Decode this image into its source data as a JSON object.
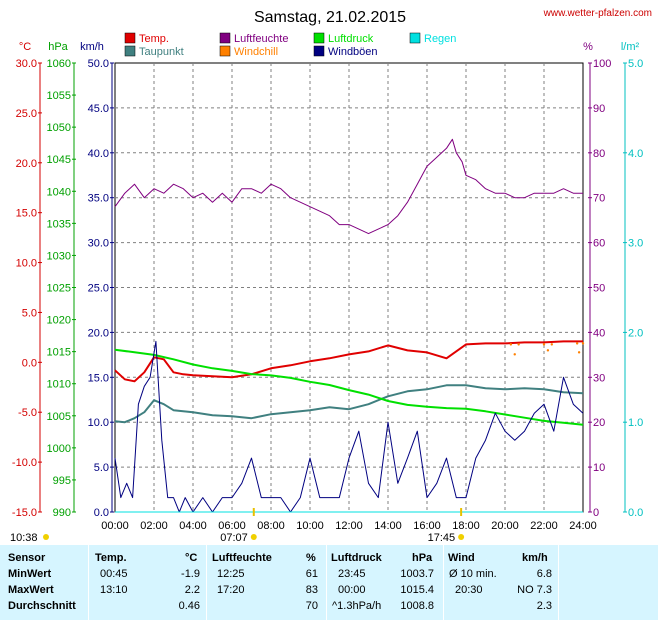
{
  "header": {
    "title": "Samstag, 21.02.2015",
    "source": "www.wetter-pfalzen.com"
  },
  "chart_data": {
    "type": "line",
    "title": "Samstag, 21.02.2015",
    "x_ticks": [
      "00:00",
      "02:00",
      "04:00",
      "06:00",
      "08:00",
      "10:00",
      "12:00",
      "14:00",
      "16:00",
      "18:00",
      "20:00",
      "22:00",
      "24:00"
    ],
    "x_range": [
      0,
      24
    ],
    "grid": true,
    "legend_position": "top",
    "axes": {
      "temp": {
        "unit": "°C",
        "ticks": [
          "30.0",
          "25.0",
          "20.0",
          "15.0",
          "10.0",
          "5.0",
          "0.0",
          "-5.0",
          "-10.0",
          "-15.0"
        ],
        "range": [
          -15,
          30
        ],
        "color": "#d40000"
      },
      "press": {
        "unit": "hPa",
        "ticks": [
          "1060",
          "1055",
          "1050",
          "1045",
          "1040",
          "1035",
          "1030",
          "1025",
          "1020",
          "1015",
          "1010",
          "1005",
          "1000",
          "995",
          "990"
        ],
        "range": [
          990,
          1060
        ],
        "color": "#00a000"
      },
      "wind": {
        "unit": "km/h",
        "ticks": [
          "50.0",
          "45.0",
          "40.0",
          "35.0",
          "30.0",
          "25.0",
          "20.0",
          "15.0",
          "10.0",
          "5.0",
          "0.0"
        ],
        "range": [
          0,
          50
        ],
        "color": "#000080"
      },
      "hum": {
        "unit": "%",
        "ticks": [
          "100",
          "90",
          "80",
          "70",
          "60",
          "50",
          "40",
          "30",
          "20",
          "10",
          "0"
        ],
        "range": [
          0,
          100
        ],
        "color": "#800080"
      },
      "rain": {
        "unit": "l/m²",
        "ticks": [
          "5.0",
          "4.0",
          "3.0",
          "2.0",
          "1.0",
          "0.0"
        ],
        "range": [
          0,
          5
        ],
        "color": "#00c0c0"
      }
    },
    "legend": [
      {
        "label": "Temp.",
        "color": "#e00000"
      },
      {
        "label": "Taupunkt",
        "color": "#408080"
      },
      {
        "label": "Luftfeuchte",
        "color": "#800080"
      },
      {
        "label": "Windchill",
        "color": "#ff8000"
      },
      {
        "label": "Luftdruck",
        "color": "#00e000"
      },
      {
        "label": "Windböen",
        "color": "#000080"
      },
      {
        "label": "Regen",
        "color": "#00e0e0"
      }
    ],
    "series": [
      {
        "name": "Luftfeuchte",
        "axis": "hum",
        "color": "#800080",
        "x": [
          0,
          0.5,
          1,
          1.5,
          2,
          2.5,
          3,
          3.5,
          4,
          4.5,
          5,
          5.5,
          6,
          6.5,
          7,
          7.5,
          8,
          8.5,
          9,
          9.5,
          10,
          10.5,
          11,
          11.5,
          12,
          12.5,
          13,
          13.5,
          14,
          14.5,
          15,
          15.5,
          16,
          16.5,
          17,
          17.3,
          17.5,
          17.8,
          18,
          18.5,
          19,
          19.5,
          20,
          20.5,
          21,
          21.5,
          22,
          22.5,
          23,
          23.5,
          24
        ],
        "y": [
          68,
          71,
          73,
          70,
          72,
          71,
          73,
          72,
          70,
          71,
          69,
          71,
          69,
          72,
          72,
          71,
          73,
          72,
          70,
          69,
          68,
          67,
          66,
          64,
          64,
          63,
          62,
          63,
          64,
          66,
          69,
          73,
          77,
          79,
          81,
          83,
          80,
          78,
          75,
          74,
          72,
          71,
          71,
          70,
          70,
          71,
          71,
          71,
          72,
          71,
          71
        ]
      },
      {
        "name": "Temp.",
        "axis": "temp",
        "color": "#e00000",
        "x": [
          0,
          0.5,
          1,
          1.5,
          2,
          2.5,
          3,
          3.5,
          4,
          5,
          6,
          7,
          8,
          9,
          10,
          11,
          12,
          13,
          14,
          15,
          16,
          17,
          18,
          19,
          20,
          21,
          22,
          23,
          24
        ],
        "y": [
          -0.8,
          -1.7,
          -1.9,
          -1.0,
          0.5,
          0.3,
          -1.0,
          -1.2,
          -1.3,
          -1.4,
          -1.5,
          -1.2,
          -0.6,
          -0.3,
          0.1,
          0.4,
          0.8,
          1.1,
          1.7,
          1.2,
          1.0,
          0.4,
          1.8,
          1.9,
          1.9,
          2.0,
          2.0,
          2.1,
          2.1
        ]
      },
      {
        "name": "Taupunkt",
        "axis": "temp",
        "color": "#408080",
        "x": [
          0,
          0.5,
          1,
          1.5,
          2,
          2.5,
          3,
          4,
          5,
          6,
          7,
          8,
          9,
          10,
          11,
          12,
          13,
          14,
          15,
          16,
          17,
          18,
          19,
          20,
          21,
          22,
          23,
          24
        ],
        "y": [
          -5.9,
          -6.0,
          -5.6,
          -5.0,
          -3.8,
          -4.2,
          -4.8,
          -5.0,
          -5.3,
          -5.4,
          -5.6,
          -5.2,
          -5.0,
          -4.8,
          -4.5,
          -4.7,
          -4.2,
          -3.4,
          -2.9,
          -2.7,
          -2.3,
          -2.3,
          -2.6,
          -2.7,
          -2.6,
          -2.7,
          -3.0,
          -3.1
        ]
      },
      {
        "name": "Luftdruck",
        "axis": "press",
        "color": "#00e000",
        "x": [
          0,
          1,
          2,
          3,
          4,
          5,
          6,
          7,
          8,
          9,
          10,
          11,
          12,
          13,
          14,
          15,
          16,
          17,
          18,
          19,
          20,
          21,
          22,
          23,
          24
        ],
        "y": [
          1015.3,
          1014.9,
          1014.5,
          1013.8,
          1013.0,
          1012.4,
          1012.0,
          1011.5,
          1011.3,
          1010.9,
          1010.3,
          1009.8,
          1009.0,
          1008.3,
          1007.3,
          1006.7,
          1006.4,
          1006.2,
          1006.1,
          1005.7,
          1005.2,
          1004.7,
          1004.2,
          1003.9,
          1003.6
        ]
      },
      {
        "name": "Windböen",
        "axis": "wind",
        "color": "#000080",
        "x": [
          0,
          0.3,
          0.6,
          0.9,
          1.2,
          1.5,
          1.8,
          2.1,
          2.4,
          2.7,
          3.0,
          3.3,
          3.6,
          4.0,
          4.5,
          5.0,
          5.5,
          6.0,
          6.5,
          7.0,
          7.5,
          8.0,
          8.5,
          9.0,
          9.5,
          10.0,
          10.5,
          11.0,
          11.5,
          12.0,
          12.5,
          13.0,
          13.5,
          14.0,
          14.5,
          15.0,
          15.5,
          16.0,
          16.5,
          17.0,
          17.5,
          18.0,
          18.5,
          19.0,
          19.5,
          20.0,
          20.5,
          21.0,
          21.5,
          22.0,
          22.5,
          23.0,
          23.5,
          24.0
        ],
        "y": [
          6,
          1.6,
          3.2,
          1.6,
          12,
          14,
          15,
          19,
          8,
          1.6,
          1.6,
          0,
          1.6,
          0,
          1.6,
          0,
          1.6,
          1.6,
          3.2,
          6,
          1.6,
          1.6,
          1.6,
          0,
          1.6,
          6,
          1.6,
          1.6,
          1.6,
          6,
          9,
          3.2,
          1.6,
          10,
          3.2,
          6,
          9,
          1.6,
          3.2,
          6,
          1.6,
          1.6,
          6,
          8,
          11,
          9,
          8,
          9,
          11,
          12,
          9,
          15,
          12,
          11
        ]
      },
      {
        "name": "Windchill",
        "axis": "temp",
        "color": "#ff8000",
        "x": [
          20.3,
          20.5,
          20.7,
          22.0,
          22.2,
          22.4,
          23.7,
          23.8,
          24.0
        ],
        "y": [
          1.8,
          0.8,
          1.8,
          1.8,
          1.2,
          1.8,
          1.9,
          1.0,
          1.9
        ]
      },
      {
        "name": "Regen",
        "axis": "rain",
        "color": "#00e0e0",
        "x": [
          0,
          24
        ],
        "y": [
          0,
          0
        ]
      }
    ],
    "sun": {
      "rise_time": "07:07",
      "set_time": "17:45",
      "moon_time": "10:38"
    }
  },
  "stats": {
    "headers": {
      "sensor": "Sensor",
      "temp": "Temp.",
      "temp_unit": "°C",
      "hum": "Luftfeuchte",
      "hum_unit": "%",
      "press": "Luftdruck",
      "press_unit": "hPa",
      "wind": "Wind",
      "wind_unit": "km/h"
    },
    "rows": [
      {
        "label": "MinWert",
        "temp_time": "00:45",
        "temp_val": "-1.9",
        "hum_time": "12:25",
        "hum_val": "61",
        "press_time": "23:45",
        "press_val": "1003.7",
        "wind_desc": "Ø 10 min.",
        "wind_val": "6.8"
      },
      {
        "label": "MaxWert",
        "temp_time": "13:10",
        "temp_val": "2.2",
        "hum_time": "17:20",
        "hum_val": "83",
        "press_time": "00:00",
        "press_val": "1015.4",
        "wind_desc": "20:30",
        "wind_val": "NO 7.3"
      },
      {
        "label": "Durchschnitt",
        "temp_time": "",
        "temp_val": "0.46",
        "hum_time": "",
        "hum_val": "70",
        "press_time": "^1.3hPa/h",
        "press_val": "1008.8",
        "wind_desc": "",
        "wind_val": "2.3"
      }
    ]
  }
}
